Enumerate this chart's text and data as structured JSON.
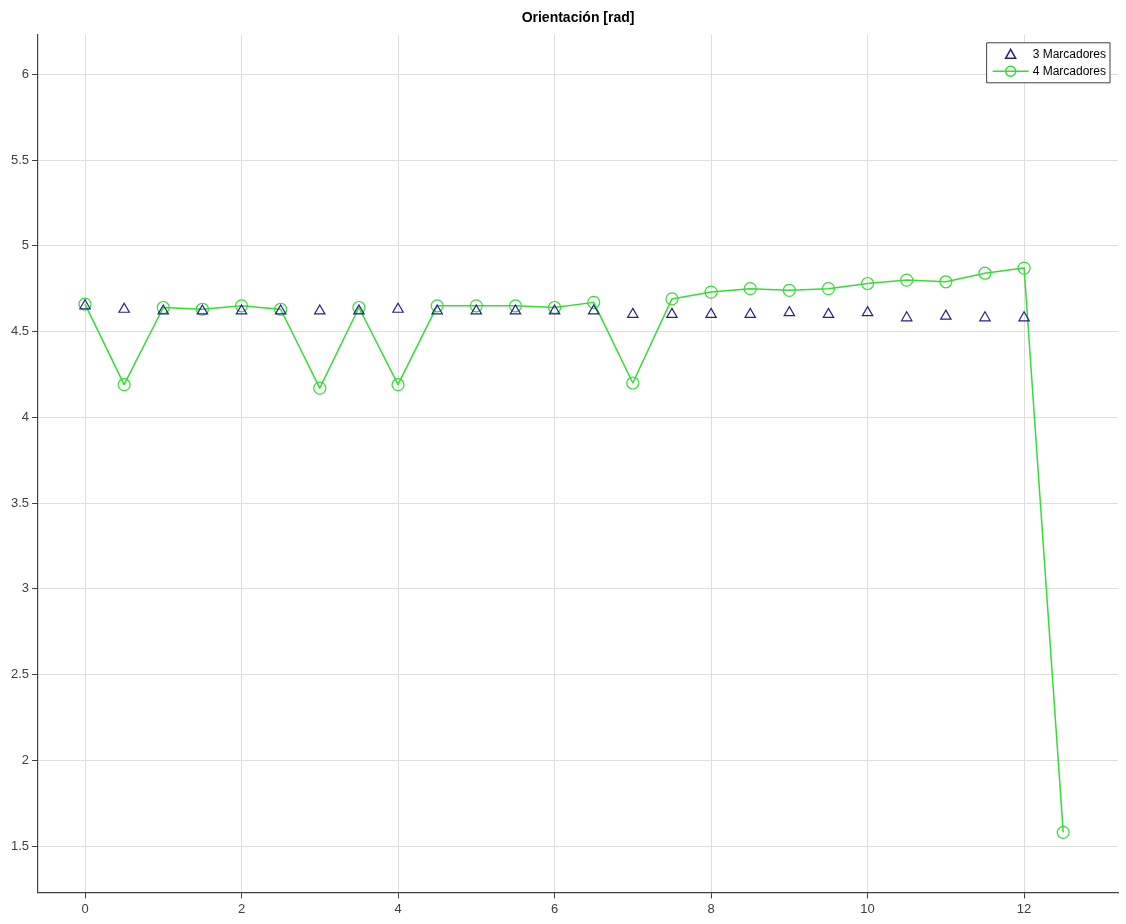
{
  "chart_data": {
    "type": "line",
    "title": "Orientación [rad]",
    "xlim": [
      -0.6,
      13.2
    ],
    "xticks": [
      0,
      2,
      4,
      6,
      8,
      10,
      12
    ],
    "ylim": [
      1.23,
      6.23
    ],
    "yticks": [
      1.5,
      2,
      2.5,
      3,
      3.5,
      4,
      4.5,
      5,
      5.5,
      6
    ],
    "grid": true,
    "legend": "top right",
    "series": [
      {
        "name": "3 Marcadores",
        "type": "scatter",
        "marker": "triangle",
        "color": "#23238f",
        "x": [
          0,
          0.5,
          1,
          1.5,
          2,
          2.5,
          3,
          3.5,
          4,
          4.5,
          5,
          5.5,
          6,
          6.5,
          7,
          7.5,
          8,
          8.5,
          9,
          9.5,
          10,
          10.5,
          11,
          11.5,
          12
        ],
        "values": [
          4.65,
          4.63,
          4.62,
          4.62,
          4.62,
          4.62,
          4.62,
          4.62,
          4.63,
          4.62,
          4.62,
          4.62,
          4.62,
          4.62,
          4.6,
          4.6,
          4.6,
          4.6,
          4.61,
          4.6,
          4.61,
          4.58,
          4.59,
          4.58,
          4.58
        ]
      },
      {
        "name": "4 Marcadores",
        "type": "line",
        "marker": "circle",
        "color": "#33dd33",
        "x": [
          0,
          0.5,
          1,
          1.5,
          2,
          2.5,
          3,
          3.5,
          4,
          4.5,
          5,
          5.5,
          6,
          6.5,
          7,
          7.5,
          8,
          8.5,
          9,
          9.5,
          10,
          10.5,
          11,
          11.5,
          12,
          12.5
        ],
        "values": [
          4.66,
          4.19,
          4.64,
          4.63,
          4.65,
          4.63,
          4.17,
          4.64,
          4.19,
          4.65,
          4.65,
          4.65,
          4.64,
          4.67,
          4.2,
          4.69,
          4.73,
          4.75,
          4.74,
          4.75,
          4.78,
          4.8,
          4.79,
          4.84,
          4.87,
          1.58
        ]
      }
    ]
  }
}
